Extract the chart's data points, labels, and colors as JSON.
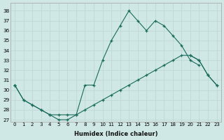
{
  "xlabel": "Humidex (Indice chaleur)",
  "background_color": "#cfe8e5",
  "grid_color": "#c0d8d5",
  "line_color": "#1a6b5a",
  "xlim": [
    -0.5,
    23.5
  ],
  "ylim": [
    26.8,
    38.8
  ],
  "yticks": [
    27,
    28,
    29,
    30,
    31,
    32,
    33,
    34,
    35,
    36,
    37,
    38
  ],
  "xticks": [
    0,
    1,
    2,
    3,
    4,
    5,
    6,
    7,
    8,
    9,
    10,
    11,
    12,
    13,
    14,
    15,
    16,
    17,
    18,
    19,
    20,
    21,
    22,
    23
  ],
  "series_top": [
    30.5,
    29.0,
    28.5,
    28.0,
    27.5,
    27.0,
    27.0,
    27.5,
    30.5,
    30.5,
    33.0,
    35.0,
    36.5,
    38.0,
    37.0,
    36.0,
    37.0,
    36.5,
    35.5,
    34.5,
    33.0,
    32.5,
    null,
    null
  ],
  "series_mid": [
    30.5,
    null,
    null,
    null,
    null,
    null,
    null,
    null,
    null,
    null,
    null,
    null,
    null,
    null,
    null,
    null,
    null,
    null,
    null,
    null,
    33.5,
    33.0,
    31.5,
    30.5
  ],
  "series_bottom": [
    30.5,
    29.0,
    28.5,
    28.0,
    27.5,
    27.5,
    27.5,
    27.5,
    28.0,
    28.5,
    29.0,
    29.5,
    30.0,
    30.5,
    31.0,
    31.5,
    32.0,
    32.5,
    33.0,
    33.5,
    33.5,
    33.0,
    31.5,
    30.5
  ]
}
